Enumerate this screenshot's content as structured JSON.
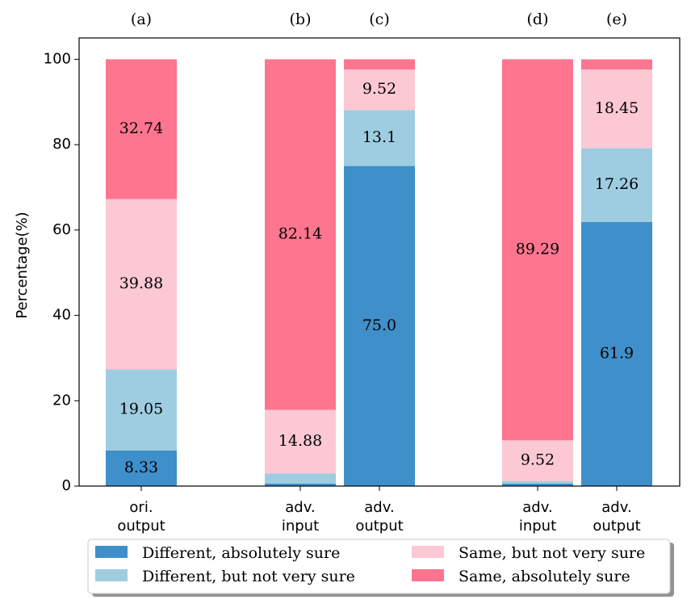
{
  "chart_data": {
    "type": "bar",
    "stacked": true,
    "ylabel": "Percentage(%)",
    "ylim": [
      0,
      105
    ],
    "yticks": [
      "0",
      "20",
      "40",
      "60",
      "80",
      "100"
    ],
    "grid": false,
    "legend_position": "bottom",
    "groups": [
      {
        "tag": "(a)",
        "label": [
          "ori.",
          "output"
        ],
        "values": [
          8.33,
          19.05,
          39.88,
          32.74
        ],
        "labels": [
          "8.33",
          "19.05",
          "39.88",
          "32.74"
        ]
      },
      {
        "tag": "(b)",
        "label": [
          "adv.",
          "input"
        ],
        "values": [
          0.6,
          2.38,
          14.88,
          82.14
        ],
        "labels": [
          null,
          null,
          "14.88",
          "82.14"
        ]
      },
      {
        "tag": "(c)",
        "label": [
          "adv.",
          "output"
        ],
        "values": [
          75.0,
          13.1,
          9.52,
          2.38
        ],
        "labels": [
          "75.0",
          "13.1",
          "9.52",
          null
        ]
      },
      {
        "tag": "(d)",
        "label": [
          "adv.",
          "input"
        ],
        "values": [
          0.6,
          0.6,
          9.52,
          89.29
        ],
        "labels": [
          null,
          null,
          "9.52",
          "89.29"
        ]
      },
      {
        "tag": "(e)",
        "label": [
          "adv.",
          "output"
        ],
        "values": [
          61.9,
          17.26,
          18.45,
          2.38
        ],
        "labels": [
          "61.9",
          "17.26",
          "18.45",
          null
        ]
      }
    ],
    "series": [
      {
        "name": "Different, absolutely sure",
        "color": "#3f8fca"
      },
      {
        "name": "Different, but not very sure",
        "color": "#9ecde1"
      },
      {
        "name": "Same, but not very sure",
        "color": "#fbc8d3"
      },
      {
        "name": "Same, absolutely sure",
        "color": "#fd758f"
      }
    ]
  }
}
